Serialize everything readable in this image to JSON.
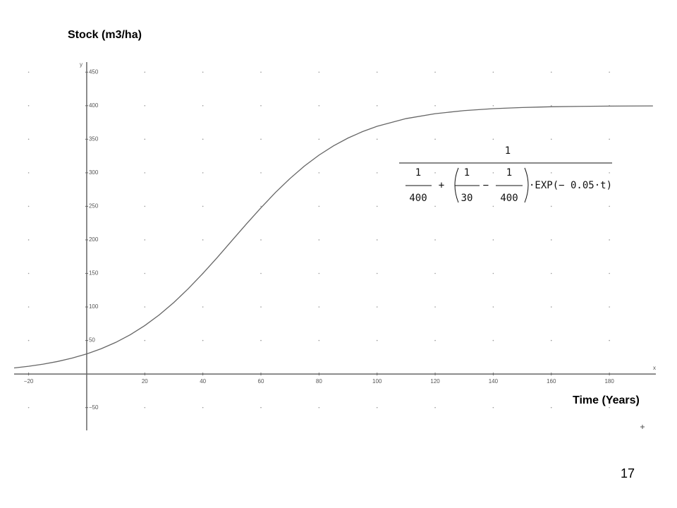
{
  "chart_data": {
    "type": "line",
    "title": "Stock (m3/ha)",
    "x_label": "Time (Years)",
    "x_axis_name": "x",
    "y_axis_name": "y",
    "x": [
      -25,
      -20,
      -15,
      -10,
      -5,
      0,
      5,
      10,
      15,
      20,
      25,
      30,
      35,
      40,
      45,
      50,
      55,
      60,
      65,
      70,
      75,
      80,
      85,
      90,
      95,
      100,
      110,
      120,
      130,
      140,
      150,
      160,
      170,
      180,
      195
    ],
    "values": [
      9.08,
      11.59,
      14.75,
      18.75,
      23.76,
      30.0,
      37.72,
      47.17,
      58.6,
      72.24,
      88.23,
      106.6,
      127.3,
      149.9,
      173.9,
      198.8,
      223.7,
      247.8,
      270.6,
      291.4,
      310.1,
      326.3,
      340.2,
      351.8,
      361.4,
      369.3,
      380.8,
      388.1,
      392.7,
      395.6,
      397.3,
      398.4,
      399.0,
      399.4,
      399.7
    ],
    "color": "#666666",
    "xlim": [
      -25,
      196
    ],
    "ylim": [
      -84,
      465
    ],
    "xticks": [
      {
        "value": -20,
        "label": "−20"
      },
      20,
      40,
      60,
      80,
      100,
      120,
      140,
      160,
      180
    ],
    "yticks": [
      {
        "value": -50,
        "label": "−50"
      },
      50,
      100,
      150,
      200,
      250,
      300,
      350,
      400,
      450
    ],
    "grid": true,
    "formula": {
      "numerator": "1",
      "a_num": "1",
      "a_den": "400",
      "plus": "+",
      "b_num": "1",
      "b_den": "30",
      "minus": "−",
      "c_num": "1",
      "c_den": "400",
      "tail": "·EXP(− 0.05·t)"
    }
  },
  "page_number": "17"
}
